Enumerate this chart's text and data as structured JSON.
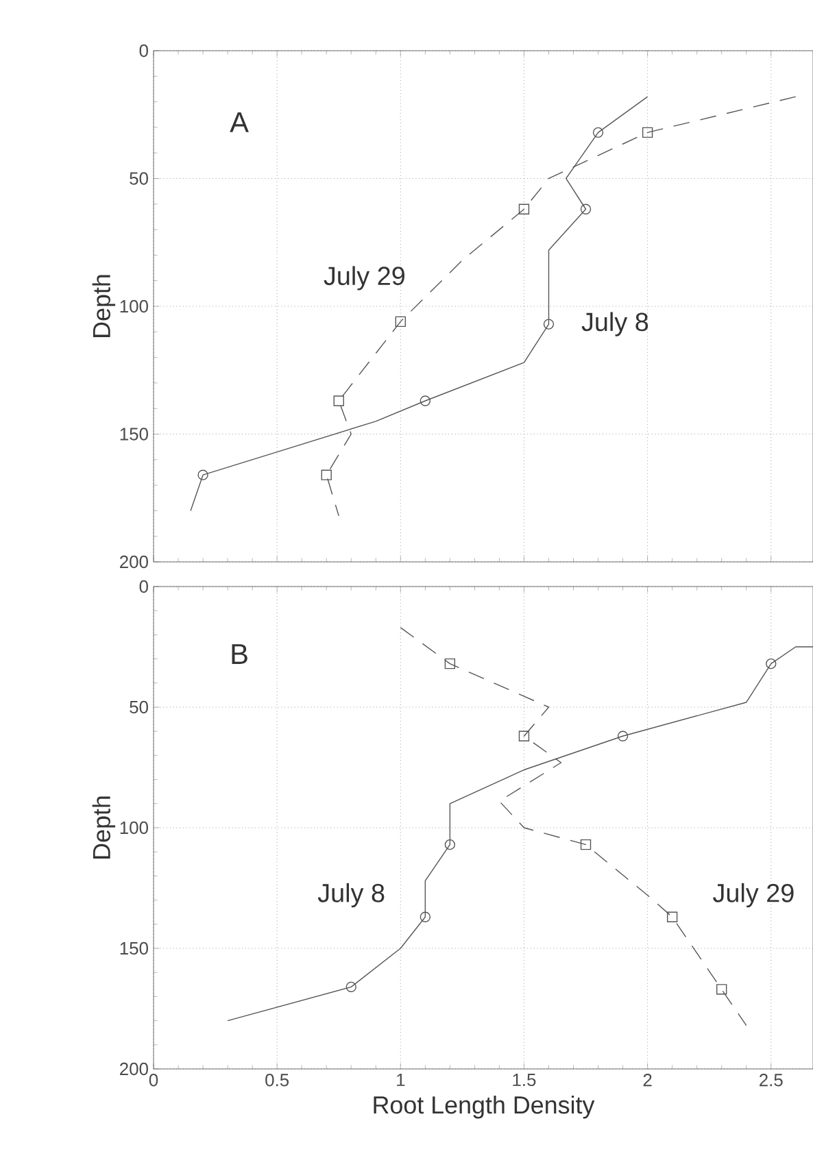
{
  "chart_data": [
    {
      "type": "line",
      "ylabel": "Depth",
      "xlim": [
        0,
        2.67
      ],
      "ylim": [
        200,
        0
      ],
      "xticks": [
        0,
        0.5,
        1,
        1.5,
        2,
        2.5
      ],
      "yticks": [
        0,
        50,
        100,
        150,
        200
      ],
      "grid": true,
      "tick_labels": "y",
      "annotations": [
        "A",
        "July 29",
        "July 8"
      ],
      "series": [
        {
          "line_style": "solid",
          "color": "#555555",
          "x": [
            2.0,
            1.8,
            1.67,
            1.75,
            1.6,
            1.6,
            1.5,
            1.1,
            0.9,
            0.5,
            0.2,
            0.15
          ],
          "values": [
            18,
            32,
            50,
            62,
            78,
            107,
            122,
            137,
            145,
            157,
            166,
            180
          ]
        },
        {
          "line_style": "dashed",
          "color": "#555555",
          "x": [
            2.6,
            2.0,
            1.6,
            1.5,
            1.25,
            1.0,
            0.75,
            0.8,
            0.7,
            0.75
          ],
          "values": [
            18,
            32,
            50,
            62,
            82,
            106,
            137,
            150,
            166,
            182
          ]
        },
        {
          "type": "scatter",
          "marker": "circle",
          "color": "#555555",
          "x": [
            1.8,
            1.75,
            1.6,
            1.1,
            0.2
          ],
          "values": [
            32,
            62,
            107,
            137,
            166
          ]
        },
        {
          "type": "scatter",
          "marker": "square",
          "color": "#555555",
          "x": [
            2.0,
            1.5,
            1.0,
            0.75,
            0.7
          ],
          "values": [
            32,
            62,
            106,
            137,
            166
          ]
        }
      ]
    },
    {
      "type": "line",
      "xlabel": "Root Length Density",
      "ylabel": "Depth",
      "xlim": [
        0,
        2.67
      ],
      "ylim": [
        200,
        0
      ],
      "xticks": [
        0,
        0.5,
        1,
        1.5,
        2,
        2.5
      ],
      "yticks": [
        0,
        50,
        100,
        150,
        200
      ],
      "grid": true,
      "annotations": [
        "B",
        "July 8",
        "July 29"
      ],
      "series": [
        {
          "line_style": "solid",
          "color": "#555555",
          "x": [
            2.67,
            2.6,
            2.5,
            2.4,
            1.9,
            1.5,
            1.2,
            1.2,
            1.1,
            1.1,
            1.0,
            0.8,
            0.3
          ],
          "values": [
            25,
            25,
            32,
            48,
            62,
            76,
            90,
            107,
            122,
            137,
            150,
            166,
            180
          ]
        },
        {
          "line_style": "dashed",
          "color": "#555555",
          "x": [
            1.0,
            1.2,
            1.6,
            1.5,
            1.65,
            1.4,
            1.5,
            1.75,
            2.0,
            2.1,
            2.3,
            2.4
          ],
          "values": [
            17,
            32,
            50,
            62,
            73,
            89,
            100,
            107,
            128,
            137,
            167,
            182
          ]
        },
        {
          "type": "scatter",
          "marker": "circle",
          "color": "#555555",
          "x": [
            2.5,
            1.9,
            1.2,
            1.1,
            0.8
          ],
          "values": [
            32,
            62,
            107,
            137,
            166
          ]
        },
        {
          "type": "scatter",
          "marker": "square",
          "color": "#555555",
          "x": [
            1.2,
            1.5,
            1.75,
            2.1,
            2.3
          ],
          "values": [
            32,
            62,
            107,
            137,
            167
          ]
        }
      ]
    }
  ]
}
